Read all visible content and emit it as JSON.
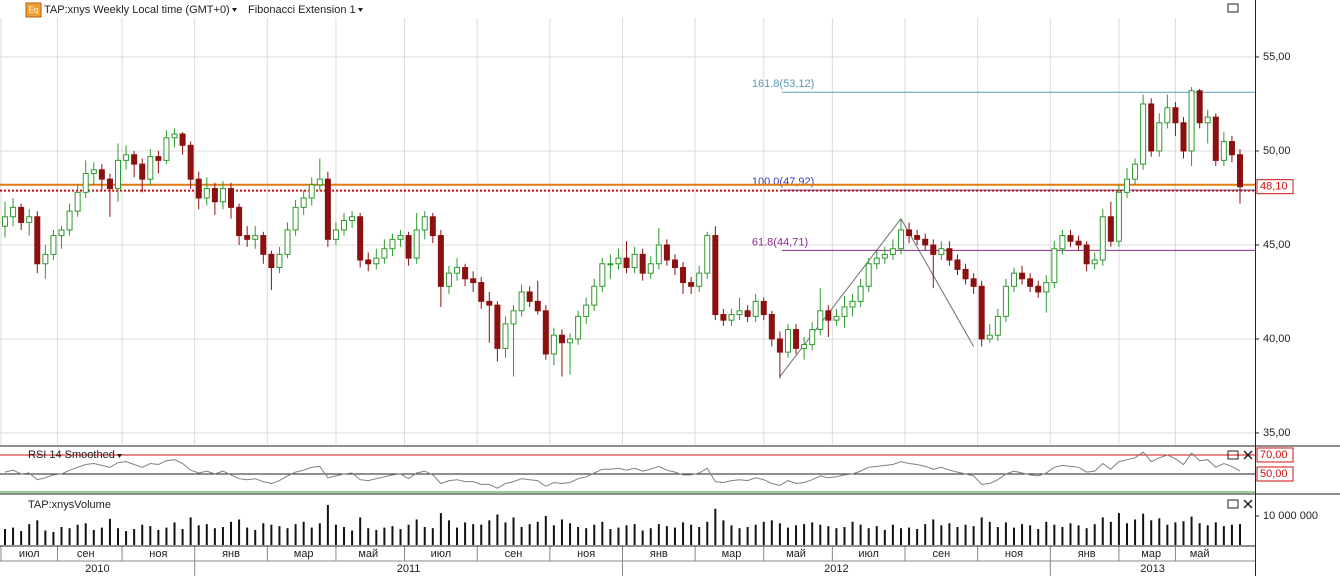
{
  "chart_data": {
    "type": "candlestick",
    "title": "TAP:xnys Weekly Local time (GMT+0)",
    "icon_label": "Eq",
    "study_label": "Fibonacci Extension 1",
    "up_color": "#2f9a2f",
    "down_color": "#8b1010",
    "grid": true,
    "ylim": [
      34.36,
      58.03
    ],
    "yticks": [
      {
        "value": 55,
        "label": "55,00"
      },
      {
        "value": 50,
        "label": "50,00"
      },
      {
        "value": 45,
        "label": "45,00"
      },
      {
        "value": 40,
        "label": "40,00"
      },
      {
        "value": 35,
        "label": "35,00"
      }
    ],
    "ohlc": [
      [
        46.0,
        47.3,
        45.4,
        46.5
      ],
      [
        46.5,
        47.5,
        46.0,
        47.0
      ],
      [
        47.0,
        47.2,
        45.8,
        46.2
      ],
      [
        46.2,
        46.9,
        45.5,
        46.5
      ],
      [
        46.5,
        46.8,
        43.5,
        44.0
      ],
      [
        44.0,
        45.0,
        43.2,
        44.5
      ],
      [
        44.5,
        45.8,
        44.2,
        45.5
      ],
      [
        45.5,
        46.0,
        44.8,
        45.8
      ],
      [
        45.8,
        47.2,
        45.5,
        46.8
      ],
      [
        46.8,
        48.2,
        46.5,
        47.8
      ],
      [
        47.8,
        49.5,
        47.5,
        48.8
      ],
      [
        48.8,
        49.4,
        48.2,
        49.0
      ],
      [
        49.0,
        49.3,
        47.9,
        48.5
      ],
      [
        48.5,
        48.8,
        46.5,
        48.0
      ],
      [
        48.0,
        50.4,
        47.3,
        49.5
      ],
      [
        49.5,
        50.3,
        49.0,
        49.8
      ],
      [
        49.8,
        50.0,
        48.6,
        49.3
      ],
      [
        49.3,
        49.6,
        47.8,
        48.5
      ],
      [
        48.5,
        50.1,
        48.2,
        49.7
      ],
      [
        49.7,
        50.0,
        48.8,
        49.5
      ],
      [
        49.5,
        51.1,
        49.3,
        50.7
      ],
      [
        50.7,
        51.2,
        50.2,
        50.9
      ],
      [
        50.9,
        51.0,
        49.8,
        50.3
      ],
      [
        50.3,
        50.5,
        48.0,
        48.5
      ],
      [
        48.5,
        48.9,
        46.9,
        47.5
      ],
      [
        47.5,
        48.6,
        47.1,
        48.0
      ],
      [
        48.0,
        48.3,
        46.6,
        47.3
      ],
      [
        47.3,
        48.4,
        46.9,
        48.0
      ],
      [
        48.0,
        48.3,
        46.4,
        47.0
      ],
      [
        47.0,
        47.2,
        45.0,
        45.5
      ],
      [
        45.5,
        46.0,
        44.9,
        45.3
      ],
      [
        45.3,
        46.0,
        44.8,
        45.5
      ],
      [
        45.5,
        45.7,
        44.0,
        44.5
      ],
      [
        44.5,
        44.7,
        42.6,
        43.8
      ],
      [
        43.8,
        44.9,
        43.5,
        44.5
      ],
      [
        44.5,
        46.2,
        44.3,
        45.8
      ],
      [
        45.8,
        47.4,
        45.5,
        47.0
      ],
      [
        47.0,
        47.9,
        46.6,
        47.5
      ],
      [
        47.5,
        48.6,
        47.1,
        48.2
      ],
      [
        48.2,
        49.6,
        47.9,
        48.5
      ],
      [
        48.5,
        48.9,
        44.9,
        45.3
      ],
      [
        45.3,
        46.2,
        45.0,
        45.8
      ],
      [
        45.8,
        46.7,
        45.5,
        46.3
      ],
      [
        46.3,
        46.8,
        45.9,
        46.5
      ],
      [
        46.5,
        46.7,
        43.8,
        44.2
      ],
      [
        44.2,
        44.6,
        43.6,
        44.0
      ],
      [
        44.0,
        44.8,
        43.7,
        44.3
      ],
      [
        44.3,
        45.3,
        44.0,
        44.8
      ],
      [
        44.8,
        45.6,
        44.4,
        45.3
      ],
      [
        45.3,
        45.8,
        44.9,
        45.5
      ],
      [
        45.5,
        45.7,
        43.9,
        44.3
      ],
      [
        44.3,
        46.7,
        44.0,
        45.8
      ],
      [
        45.8,
        46.8,
        45.3,
        46.5
      ],
      [
        46.5,
        46.7,
        45.1,
        45.5
      ],
      [
        45.5,
        45.8,
        41.7,
        42.8
      ],
      [
        42.8,
        43.9,
        42.4,
        43.5
      ],
      [
        43.5,
        44.3,
        43.1,
        43.8
      ],
      [
        43.8,
        44.0,
        42.8,
        43.2
      ],
      [
        43.2,
        43.6,
        42.5,
        43.0
      ],
      [
        43.0,
        43.3,
        41.6,
        42.0
      ],
      [
        42.0,
        42.5,
        39.8,
        41.8
      ],
      [
        41.8,
        42.0,
        38.8,
        39.5
      ],
      [
        39.5,
        41.2,
        39.0,
        40.8
      ],
      [
        40.8,
        41.8,
        38.0,
        41.5
      ],
      [
        41.5,
        42.9,
        41.2,
        42.5
      ],
      [
        42.5,
        42.8,
        41.7,
        42.0
      ],
      [
        42.0,
        43.1,
        41.3,
        41.5
      ],
      [
        41.5,
        41.8,
        38.9,
        39.2
      ],
      [
        39.2,
        40.6,
        38.6,
        40.2
      ],
      [
        40.2,
        40.5,
        38.0,
        39.8
      ],
      [
        39.8,
        40.3,
        38.1,
        40.0
      ],
      [
        40.0,
        41.5,
        39.7,
        41.2
      ],
      [
        41.2,
        42.2,
        40.8,
        41.8
      ],
      [
        41.8,
        43.2,
        41.5,
        42.8
      ],
      [
        42.8,
        44.3,
        42.5,
        44.0
      ],
      [
        44.0,
        44.5,
        43.2,
        44.0
      ],
      [
        44.0,
        44.8,
        43.7,
        44.3
      ],
      [
        44.3,
        45.2,
        43.5,
        43.8
      ],
      [
        43.8,
        44.9,
        43.5,
        44.5
      ],
      [
        44.5,
        44.8,
        43.1,
        43.5
      ],
      [
        43.5,
        44.4,
        43.2,
        44.0
      ],
      [
        44.0,
        45.9,
        43.7,
        45.0
      ],
      [
        45.0,
        45.3,
        43.9,
        44.2
      ],
      [
        44.2,
        44.5,
        43.4,
        43.8
      ],
      [
        43.8,
        44.1,
        42.4,
        43.0
      ],
      [
        43.0,
        43.3,
        42.4,
        42.8
      ],
      [
        42.8,
        43.9,
        42.5,
        43.5
      ],
      [
        43.5,
        45.7,
        43.2,
        45.5
      ],
      [
        45.5,
        46.0,
        41.0,
        41.3
      ],
      [
        41.3,
        41.6,
        40.7,
        41.0
      ],
      [
        41.0,
        41.6,
        40.7,
        41.3
      ],
      [
        41.3,
        42.2,
        41.0,
        41.5
      ],
      [
        41.5,
        41.8,
        40.9,
        41.2
      ],
      [
        41.2,
        42.4,
        40.9,
        42.0
      ],
      [
        42.0,
        42.2,
        41.0,
        41.3
      ],
      [
        41.3,
        41.5,
        39.6,
        40.0
      ],
      [
        40.0,
        40.4,
        37.9,
        39.3
      ],
      [
        39.3,
        40.8,
        39.0,
        40.5
      ],
      [
        40.5,
        40.8,
        39.2,
        39.5
      ],
      [
        39.5,
        40.1,
        38.9,
        39.7
      ],
      [
        39.7,
        40.9,
        39.4,
        40.5
      ],
      [
        40.5,
        42.7,
        40.2,
        41.5
      ],
      [
        41.5,
        41.8,
        40.1,
        41.0
      ],
      [
        41.0,
        41.6,
        40.7,
        41.2
      ],
      [
        41.2,
        42.3,
        40.6,
        41.7
      ],
      [
        41.7,
        42.4,
        41.2,
        42.0
      ],
      [
        42.0,
        43.2,
        41.7,
        42.8
      ],
      [
        42.8,
        44.3,
        42.5,
        44.0
      ],
      [
        44.0,
        44.7,
        43.7,
        44.3
      ],
      [
        44.3,
        44.9,
        44.0,
        44.5
      ],
      [
        44.5,
        45.3,
        44.2,
        44.8
      ],
      [
        44.8,
        46.4,
        44.5,
        45.8
      ],
      [
        45.8,
        46.2,
        45.1,
        45.5
      ],
      [
        45.5,
        45.8,
        45.0,
        45.3
      ],
      [
        45.3,
        45.6,
        44.7,
        45.0
      ],
      [
        45.0,
        45.3,
        42.7,
        44.5
      ],
      [
        44.5,
        45.2,
        44.2,
        44.8
      ],
      [
        44.8,
        45.2,
        43.9,
        44.2
      ],
      [
        44.2,
        44.5,
        43.4,
        43.7
      ],
      [
        43.7,
        44.0,
        42.9,
        43.2
      ],
      [
        43.2,
        43.5,
        42.4,
        42.8
      ],
      [
        42.8,
        43.1,
        39.6,
        40.0
      ],
      [
        40.0,
        40.8,
        39.8,
        40.2
      ],
      [
        40.2,
        41.6,
        39.9,
        41.2
      ],
      [
        41.2,
        43.2,
        40.9,
        42.8
      ],
      [
        42.8,
        43.8,
        42.5,
        43.5
      ],
      [
        43.5,
        43.9,
        42.9,
        43.2
      ],
      [
        43.2,
        43.5,
        42.5,
        42.8
      ],
      [
        42.8,
        43.1,
        42.2,
        42.5
      ],
      [
        42.5,
        43.4,
        41.4,
        43.0
      ],
      [
        43.0,
        45.2,
        42.7,
        44.8
      ],
      [
        44.8,
        45.8,
        44.5,
        45.5
      ],
      [
        45.5,
        45.8,
        44.9,
        45.2
      ],
      [
        45.2,
        45.5,
        44.7,
        45.0
      ],
      [
        45.0,
        45.2,
        43.6,
        44.0
      ],
      [
        44.0,
        44.6,
        43.7,
        44.2
      ],
      [
        44.2,
        46.9,
        43.9,
        46.5
      ],
      [
        46.5,
        47.3,
        44.9,
        45.2
      ],
      [
        45.2,
        48.2,
        44.9,
        47.8
      ],
      [
        47.8,
        49.1,
        47.5,
        48.5
      ],
      [
        48.5,
        49.6,
        48.2,
        49.3
      ],
      [
        49.3,
        53.0,
        49.0,
        52.5
      ],
      [
        52.5,
        52.8,
        49.7,
        50.0
      ],
      [
        50.0,
        52.0,
        49.7,
        51.5
      ],
      [
        51.5,
        53.0,
        51.2,
        52.3
      ],
      [
        52.3,
        52.6,
        50.8,
        51.5
      ],
      [
        51.5,
        51.8,
        49.6,
        50.0
      ],
      [
        50.0,
        53.4,
        49.2,
        53.2
      ],
      [
        53.2,
        53.3,
        51.2,
        51.5
      ],
      [
        51.5,
        52.2,
        50.4,
        51.8
      ],
      [
        51.8,
        52.0,
        49.2,
        49.5
      ],
      [
        49.5,
        51.0,
        49.2,
        50.5
      ],
      [
        50.5,
        50.8,
        49.4,
        49.8
      ],
      [
        49.8,
        50.1,
        47.2,
        48.1
      ]
    ],
    "resistance_line": {
      "value": 48.2,
      "color": "#e07b10"
    },
    "last_price": {
      "value": 48.1,
      "label": "48,10",
      "color": "#d01010"
    },
    "fib_levels": [
      {
        "label": "161.8(53,12)",
        "value": 53.12,
        "color": "#5b9bb5"
      },
      {
        "label": "100.0(47,92)",
        "value": 47.92,
        "color": "#3a3ab0"
      },
      {
        "label": "61.8(44,71)",
        "value": 44.71,
        "color": "#8b2b8b"
      }
    ],
    "fib_points": [
      {
        "index": 96,
        "price": 38.0
      },
      {
        "index": 111,
        "price": 46.4
      },
      {
        "index": 120,
        "price": 39.6
      }
    ],
    "rsi": {
      "name": "RSI 14 Smoothed",
      "color": "#808080",
      "ylim": [
        30,
        78.4
      ],
      "yticks": [
        {
          "value": 70,
          "label": "70,00"
        },
        {
          "value": 50,
          "label": "50,00"
        }
      ],
      "values": [
        52,
        54,
        50,
        51,
        44,
        46,
        49,
        50,
        54,
        57,
        60,
        61,
        59,
        57,
        62,
        63,
        60,
        57,
        61,
        60,
        64,
        65,
        61,
        54,
        51,
        53,
        50,
        53,
        49,
        45,
        44,
        45,
        42,
        40,
        43,
        48,
        52,
        54,
        57,
        58,
        46,
        48,
        50,
        51,
        44,
        43,
        45,
        47,
        49,
        50,
        45,
        51,
        53,
        49,
        40,
        43,
        44,
        42,
        42,
        39,
        39,
        35,
        40,
        42,
        45,
        44,
        43,
        37,
        41,
        40,
        41,
        45,
        47,
        51,
        55,
        55,
        56,
        54,
        56,
        53,
        55,
        58,
        54,
        52,
        49,
        49,
        51,
        56,
        42,
        41,
        43,
        44,
        43,
        46,
        44,
        40,
        38,
        43,
        40,
        41,
        44,
        48,
        46,
        47,
        49,
        50,
        53,
        57,
        58,
        59,
        60,
        63,
        61,
        60,
        58,
        55,
        57,
        54,
        52,
        50,
        48,
        39,
        40,
        44,
        50,
        53,
        51,
        49,
        48,
        51,
        57,
        59,
        58,
        57,
        52,
        53,
        61,
        55,
        63,
        65,
        67,
        73,
        63,
        67,
        70,
        66,
        60,
        72,
        64,
        65,
        57,
        61,
        58,
        53
      ]
    },
    "volume": {
      "name": "TAP:xnysVolume",
      "color": "#111111",
      "ylim": [
        0,
        16550000
      ],
      "yticks": [
        {
          "value": 10000000,
          "label": "10 000 000"
        }
      ],
      "values": [
        5500000,
        6000000,
        4800000,
        7200000,
        8500000,
        5000000,
        4500000,
        6200000,
        5800000,
        7000000,
        7500000,
        5200000,
        6000000,
        9000000,
        5800000,
        4800000,
        5500000,
        7000000,
        6500000,
        5200000,
        6000000,
        7800000,
        5500000,
        9500000,
        6800000,
        7200000,
        5800000,
        6200000,
        8000000,
        8800000,
        6000000,
        5200000,
        7500000,
        7000000,
        6500000,
        5800000,
        7200000,
        8000000,
        6000000,
        7500000,
        13800000,
        7000000,
        6200000,
        5000000,
        9500000,
        5800000,
        5200000,
        6000000,
        6500000,
        5500000,
        7000000,
        8800000,
        6200000,
        5800000,
        11000000,
        8500000,
        6000000,
        7800000,
        7200000,
        7000000,
        8500000,
        10500000,
        7800000,
        9500000,
        6200000,
        7200000,
        8000000,
        10000000,
        6800000,
        8800000,
        7500000,
        6200000,
        5800000,
        7000000,
        8000000,
        5500000,
        6000000,
        6800000,
        7200000,
        5000000,
        5800000,
        7200000,
        6500000,
        6000000,
        7800000,
        7000000,
        6200000,
        8000000,
        12500000,
        8500000,
        6800000,
        5800000,
        6200000,
        7000000,
        8000000,
        8500000,
        7500000,
        6000000,
        6800000,
        7200000,
        7800000,
        7000000,
        6500000,
        5800000,
        6200000,
        8000000,
        7000000,
        5800000,
        6500000,
        5200000,
        7000000,
        5800000,
        6000000,
        5500000,
        7200000,
        8800000,
        6800000,
        7500000,
        6200000,
        7000000,
        6500000,
        9500000,
        8000000,
        6200000,
        7800000,
        6000000,
        7200000,
        6800000,
        5500000,
        8000000,
        7000000,
        6200000,
        7500000,
        6800000,
        5800000,
        7200000,
        9500000,
        8000000,
        11000000,
        7500000,
        8800000,
        10800000,
        8500000,
        9200000,
        7000000,
        7800000,
        8200000,
        9800000,
        7500000,
        6800000,
        7800000,
        6500000,
        7000000,
        7200000
      ]
    },
    "month_ticks": [
      {
        "value": 3,
        "label": "июл"
      },
      {
        "value": 10,
        "label": "сен"
      },
      {
        "value": 19,
        "label": "ноя"
      },
      {
        "value": 28,
        "label": "янв"
      },
      {
        "value": 37,
        "label": "мар"
      },
      {
        "value": 45,
        "label": "май"
      },
      {
        "value": 54,
        "label": "июл"
      },
      {
        "value": 63,
        "label": "сен"
      },
      {
        "value": 72,
        "label": "ноя"
      },
      {
        "value": 81,
        "label": "янв"
      },
      {
        "value": 90,
        "label": "мар"
      },
      {
        "value": 98,
        "label": "май"
      },
      {
        "value": 107,
        "label": "июл"
      },
      {
        "value": 116,
        "label": "сен"
      },
      {
        "value": 125,
        "label": "ноя"
      },
      {
        "value": 134,
        "label": "янв"
      },
      {
        "value": 142,
        "label": "мар"
      },
      {
        "value": 148,
        "label": "май"
      }
    ],
    "year_ticks": [
      {
        "value": -28.5,
        "label": "2010"
      },
      {
        "value": 23.5,
        "label": "2011"
      },
      {
        "value": 76.5,
        "label": "2012"
      },
      {
        "value": 129.5,
        "label": "2013"
      }
    ]
  }
}
